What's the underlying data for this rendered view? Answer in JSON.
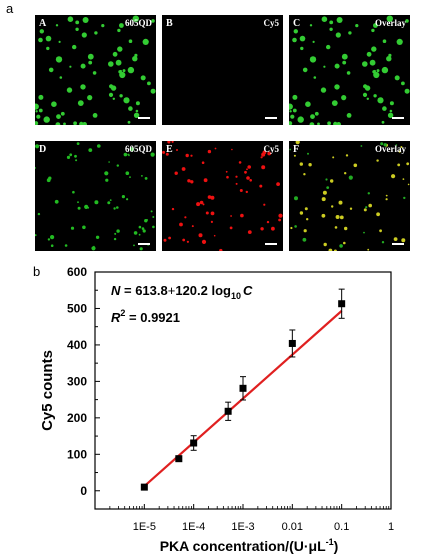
{
  "figure": {
    "label_a": "a",
    "label_b": "b"
  },
  "panels": [
    {
      "letter": "A",
      "title": "605QD",
      "dot_color": "#33cc33"
    },
    {
      "letter": "B",
      "title": "Cy5",
      "dot_color": ""
    },
    {
      "letter": "C",
      "title": "Overlay",
      "dot_color": "#33cc33"
    },
    {
      "letter": "D",
      "title": "605QD",
      "dot_color": "#22bb22"
    },
    {
      "letter": "E",
      "title": "Cy5",
      "dot_color": "#ee1111"
    },
    {
      "letter": "F",
      "title": "Overlay",
      "dot_color": "#cccc22"
    }
  ],
  "chart_data": {
    "type": "scatter",
    "x": [
      1e-05,
      5e-05,
      0.0001,
      0.0005,
      0.001,
      0.01,
      0.1
    ],
    "y": [
      10,
      88,
      131,
      218,
      281,
      404,
      513
    ],
    "yerr": [
      4,
      6,
      20,
      25,
      32,
      37,
      40
    ],
    "fit": {
      "x": [
        1e-05,
        0.1
      ],
      "y": [
        12.6,
        493.4
      ],
      "color": "#e02020"
    },
    "equation_line1": {
      "lead": "N",
      "eq": " = 613.8",
      "plus": "+",
      "tail": "120.2 log",
      "sub": "10",
      "var": "C"
    },
    "equation_line2": {
      "lead": "R",
      "sup": "2",
      "tail": " = 0.9921"
    },
    "xlabel": "PKA concentration/(U·μL",
    "xlabel_sup": "-1",
    "xlabel_end": ")",
    "ylabel": "Cy5 counts",
    "x_scale": "log",
    "xlim": [
      1e-06,
      1
    ],
    "ylim": [
      -50,
      600
    ],
    "x_ticks": [
      "1E-5",
      "1E-4",
      "1E-3",
      "0.01",
      "0.1",
      "1"
    ],
    "y_ticks": [
      "0",
      "100",
      "200",
      "300",
      "400",
      "500",
      "600"
    ],
    "marker_color": "#000000"
  }
}
